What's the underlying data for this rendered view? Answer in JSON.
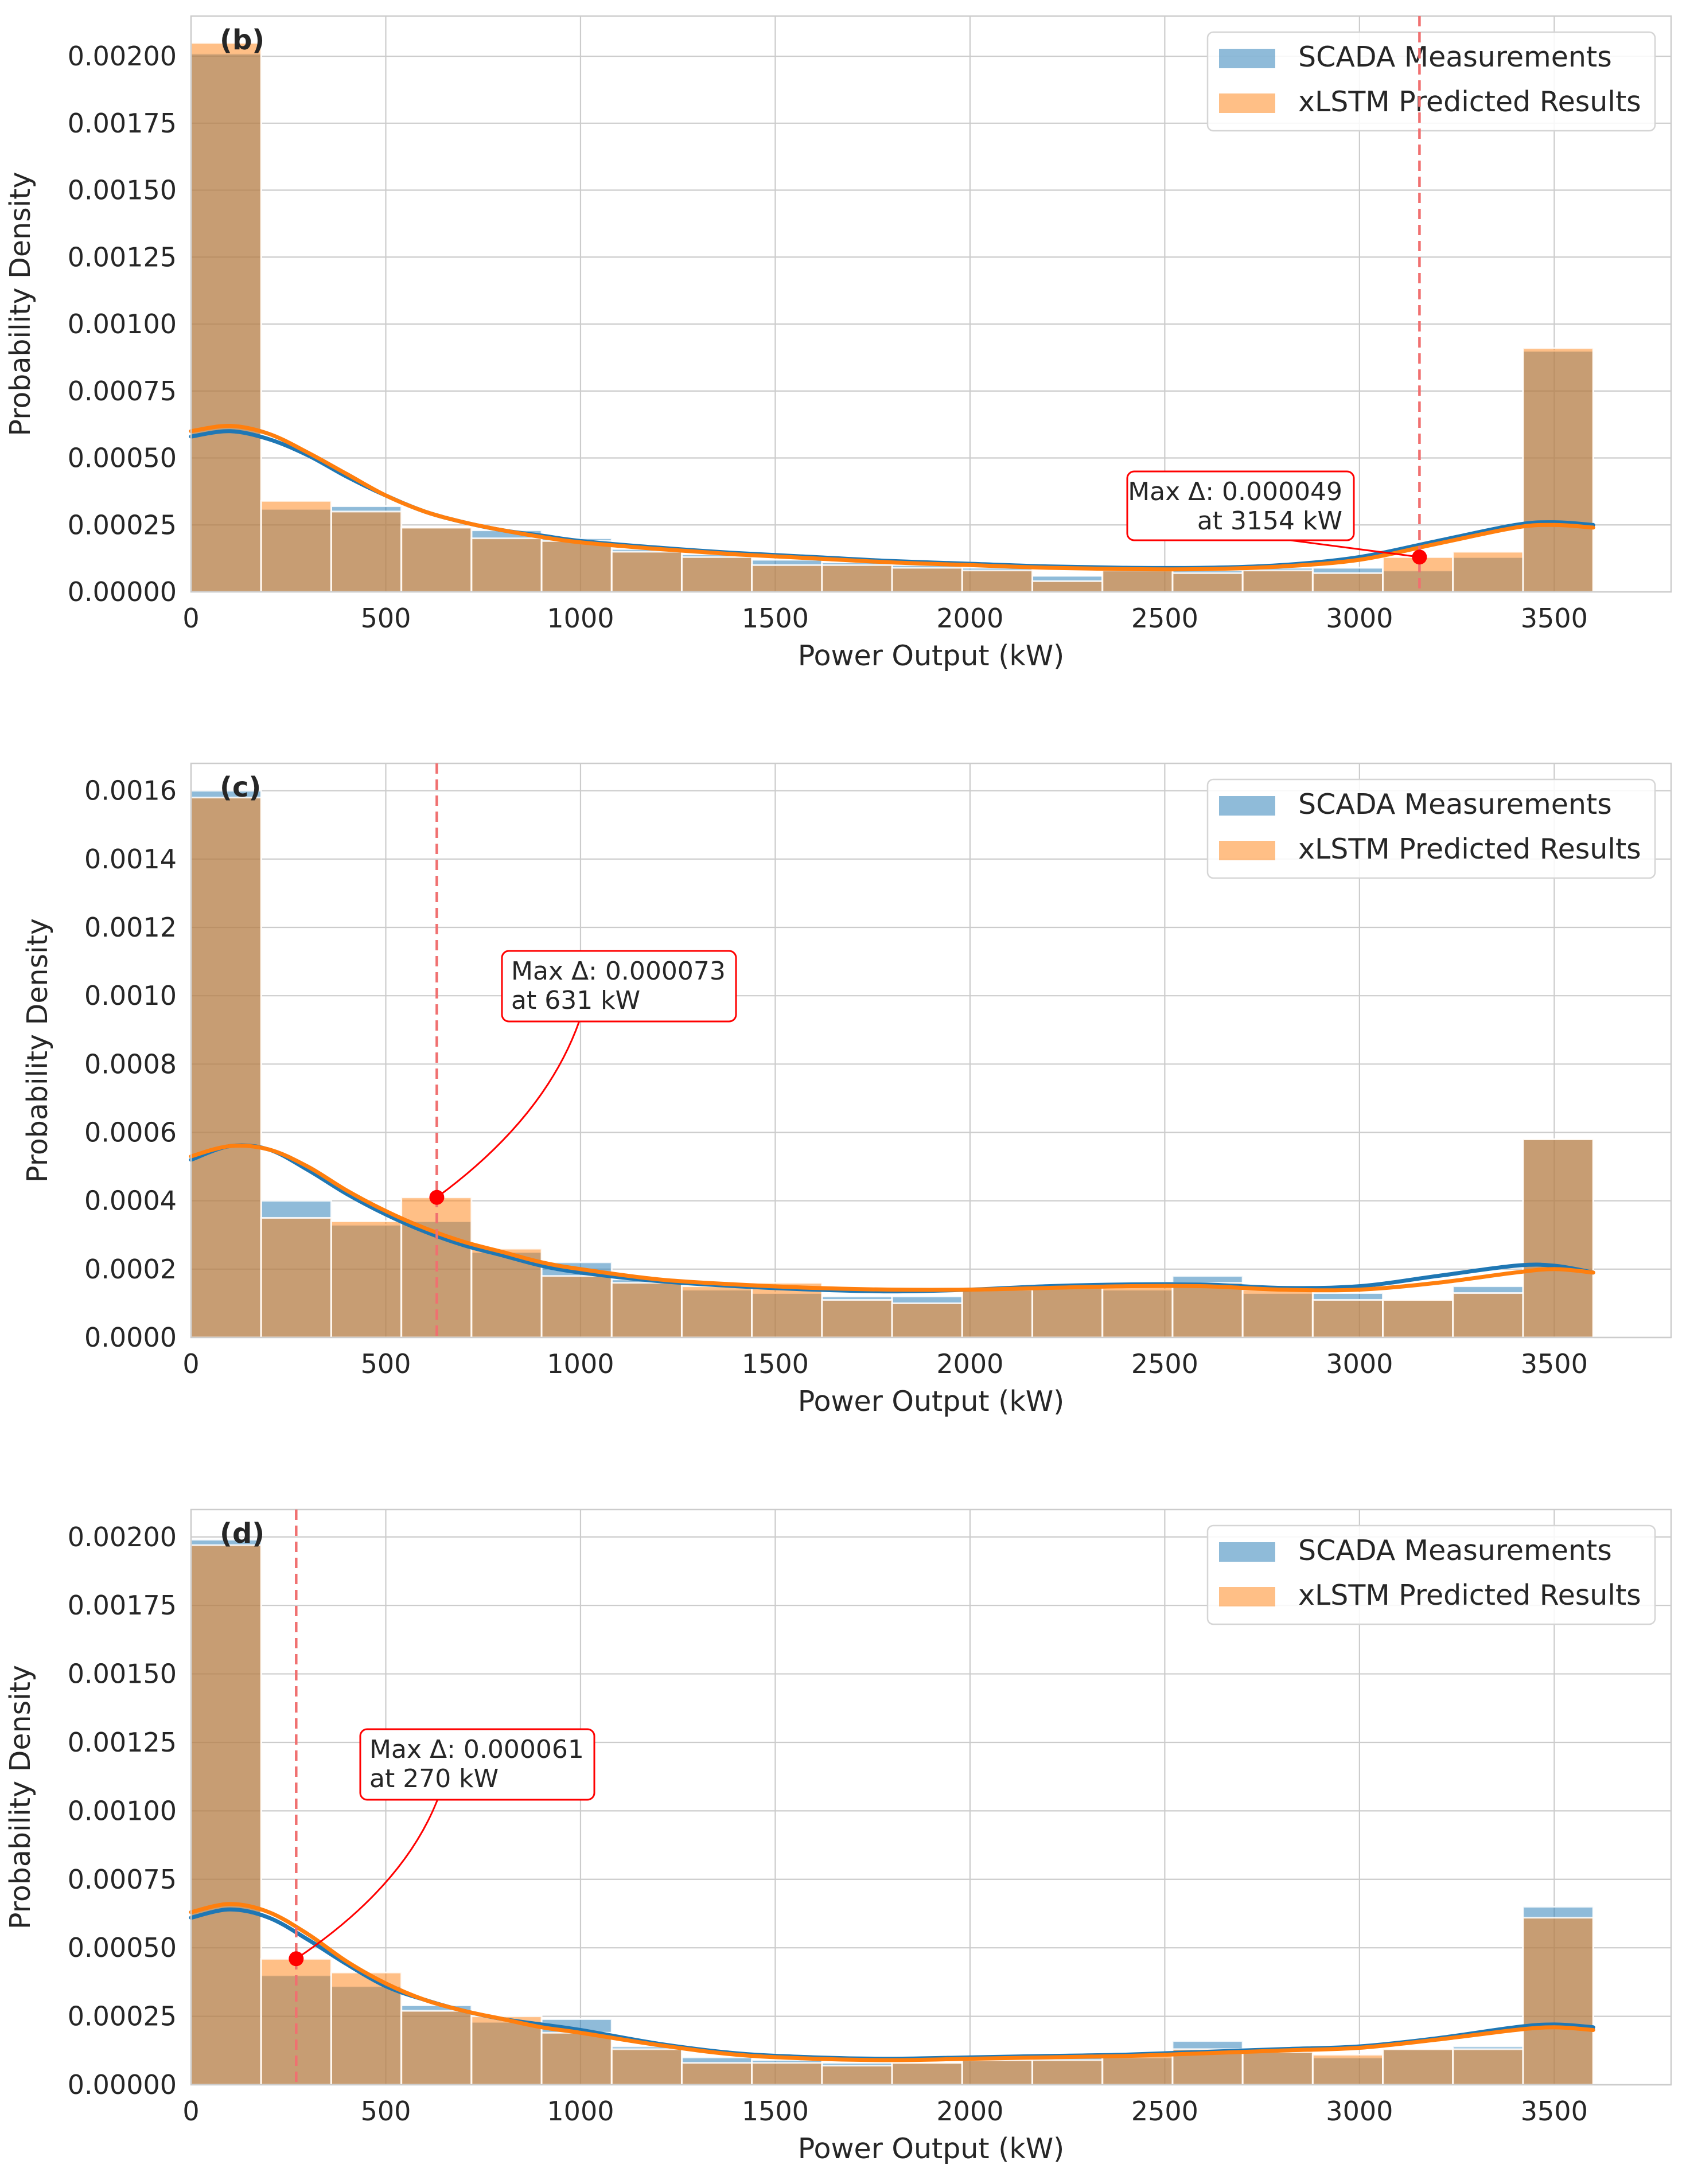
{
  "colors": {
    "scada": "#1f77b4",
    "xlstm": "#ff7f0e",
    "marker": "#ff0000",
    "vline": "#f07070",
    "grid": "#cccccc",
    "frame": "#cccccc",
    "text": "#262626"
  },
  "chart_data": [
    {
      "type": "bar",
      "panel_label": "(b)",
      "xlabel": "Power Output (kW)",
      "ylabel": "Probability Density",
      "xlim": [
        0,
        3800
      ],
      "ylim": [
        0,
        0.00215
      ],
      "xticks": [
        0,
        500,
        1000,
        1500,
        2000,
        2500,
        3000,
        3500
      ],
      "xtick_labels": [
        "0",
        "500",
        "1000",
        "1500",
        "2000",
        "2500",
        "3000",
        "3500"
      ],
      "yticks": [
        0,
        0.00025,
        0.0005,
        0.00075,
        0.001,
        0.00125,
        0.0015,
        0.00175,
        0.002
      ],
      "ytick_labels": [
        "0.00000",
        "0.00025",
        "0.00050",
        "0.00075",
        "0.00100",
        "0.00125",
        "0.00150",
        "0.00175",
        "0.00200"
      ],
      "bin_edges": [
        0,
        180,
        360,
        540,
        720,
        900,
        1080,
        1260,
        1440,
        1620,
        1800,
        1980,
        2160,
        2340,
        2520,
        2700,
        2880,
        3060,
        3240,
        3420,
        3600
      ],
      "series": [
        {
          "name": "SCADA Measurements",
          "values": [
            0.00201,
            0.00031,
            0.00032,
            0.00024,
            0.00023,
            0.0002,
            0.00016,
            0.00014,
            0.00012,
            0.00011,
            0.0001,
            9e-05,
            6e-05,
            9e-05,
            8e-05,
            9e-05,
            9e-05,
            8e-05,
            0.00013,
            0.0009
          ]
        },
        {
          "name": "xLSTM Predicted Results",
          "values": [
            0.00205,
            0.00034,
            0.0003,
            0.00024,
            0.0002,
            0.00019,
            0.00015,
            0.00013,
            0.0001,
            0.0001,
            9e-05,
            8e-05,
            4e-05,
            8e-05,
            7e-05,
            8e-05,
            7e-05,
            0.00013,
            0.00015,
            0.00091
          ]
        }
      ],
      "kde": [
        {
          "name": "SCADA Measurements",
          "x": [
            0,
            100,
            200,
            300,
            400,
            500,
            600,
            700,
            800,
            900,
            1000,
            1200,
            1400,
            1600,
            1800,
            2000,
            2200,
            2400,
            2600,
            2800,
            3000,
            3200,
            3400,
            3500,
            3600
          ],
          "y": [
            0.00058,
            0.0006,
            0.00057,
            0.00051,
            0.00043,
            0.00036,
            0.0003,
            0.00026,
            0.00023,
            0.00021,
            0.00019,
            0.000165,
            0.000145,
            0.00013,
            0.000115,
            0.000105,
            9.5e-05,
            9e-05,
            9e-05,
            0.0001,
            0.00013,
            0.00019,
            0.00025,
            0.00026,
            0.00025
          ]
        },
        {
          "name": "xLSTM Predicted Results",
          "x": [
            0,
            100,
            200,
            300,
            400,
            500,
            600,
            700,
            800,
            900,
            1000,
            1200,
            1400,
            1600,
            1800,
            2000,
            2200,
            2400,
            2600,
            2800,
            3000,
            3200,
            3400,
            3500,
            3600
          ],
          "y": [
            0.0006,
            0.00062,
            0.00059,
            0.00052,
            0.00044,
            0.00036,
            0.0003,
            0.00026,
            0.00023,
            0.000205,
            0.000185,
            0.00016,
            0.00014,
            0.000125,
            0.00011,
            0.0001,
            9e-05,
            8.5e-05,
            8.5e-05,
            9.5e-05,
            0.00012,
            0.00018,
            0.00024,
            0.00025,
            0.00024
          ]
        }
      ],
      "max_delta": {
        "x": 3154,
        "y": 0.00013,
        "line1": "Max Δ: 0.000049",
        "line2": "at 3154 kW",
        "text_align": "right"
      }
    },
    {
      "type": "bar",
      "panel_label": "(c)",
      "xlabel": "Power Output (kW)",
      "ylabel": "Probability Density",
      "xlim": [
        0,
        3800
      ],
      "ylim": [
        0,
        0.00168
      ],
      "xticks": [
        0,
        500,
        1000,
        1500,
        2000,
        2500,
        3000,
        3500
      ],
      "xtick_labels": [
        "0",
        "500",
        "1000",
        "1500",
        "2000",
        "2500",
        "3000",
        "3500"
      ],
      "yticks": [
        0,
        0.0002,
        0.0004,
        0.0006,
        0.0008,
        0.001,
        0.0012,
        0.0014,
        0.0016
      ],
      "ytick_labels": [
        "0.0000",
        "0.0002",
        "0.0004",
        "0.0006",
        "0.0008",
        "0.0010",
        "0.0012",
        "0.0014",
        "0.0016"
      ],
      "bin_edges": [
        0,
        180,
        360,
        540,
        720,
        900,
        1080,
        1260,
        1440,
        1620,
        1800,
        1980,
        2160,
        2340,
        2520,
        2700,
        2880,
        3060,
        3240,
        3420,
        3600
      ],
      "series": [
        {
          "name": "SCADA Measurements",
          "values": [
            0.0016,
            0.0004,
            0.00033,
            0.00034,
            0.00025,
            0.00022,
            0.00017,
            0.00014,
            0.00013,
            0.00012,
            0.00012,
            0.00014,
            0.00015,
            0.00014,
            0.00018,
            0.00013,
            0.00013,
            0.00011,
            0.00015,
            0.00058
          ]
        },
        {
          "name": "xLSTM Predicted Results",
          "values": [
            0.00158,
            0.00035,
            0.00034,
            0.00041,
            0.00026,
            0.00018,
            0.00016,
            0.00015,
            0.00016,
            0.00011,
            0.0001,
            0.00014,
            0.00015,
            0.00016,
            0.00016,
            0.00014,
            0.00011,
            0.00011,
            0.00013,
            0.00058
          ]
        }
      ],
      "kde": [
        {
          "name": "SCADA Measurements",
          "x": [
            0,
            100,
            200,
            300,
            400,
            500,
            600,
            700,
            800,
            900,
            1000,
            1200,
            1400,
            1600,
            1800,
            2000,
            2200,
            2400,
            2600,
            2800,
            3000,
            3200,
            3400,
            3500,
            3600
          ],
          "y": [
            0.00052,
            0.00056,
            0.00055,
            0.00049,
            0.00042,
            0.00036,
            0.00031,
            0.00027,
            0.00024,
            0.00021,
            0.00019,
            0.000165,
            0.00015,
            0.00014,
            0.000135,
            0.00014,
            0.00015,
            0.000155,
            0.000155,
            0.000145,
            0.00015,
            0.00018,
            0.00021,
            0.00021,
            0.00019
          ]
        },
        {
          "name": "xLSTM Predicted Results",
          "x": [
            0,
            100,
            200,
            300,
            400,
            500,
            600,
            700,
            800,
            900,
            1000,
            1200,
            1400,
            1600,
            1800,
            2000,
            2200,
            2400,
            2600,
            2800,
            3000,
            3200,
            3400,
            3500,
            3600
          ],
          "y": [
            0.00053,
            0.00056,
            0.00055,
            0.0005,
            0.00043,
            0.00037,
            0.00032,
            0.00028,
            0.00025,
            0.00022,
            0.0002,
            0.00017,
            0.000155,
            0.000145,
            0.00014,
            0.00014,
            0.000145,
            0.00015,
            0.00015,
            0.00014,
            0.00014,
            0.00016,
            0.00019,
            0.0002,
            0.00019
          ]
        }
      ],
      "max_delta": {
        "x": 631,
        "y": 0.00041,
        "line1": "Max Δ: 0.000073",
        "line2": "at 631 kW",
        "text_align": "left"
      }
    },
    {
      "type": "bar",
      "panel_label": "(d)",
      "xlabel": "Power Output (kW)",
      "ylabel": "Probability Density",
      "xlim": [
        0,
        3800
      ],
      "ylim": [
        0,
        0.0021
      ],
      "xticks": [
        0,
        500,
        1000,
        1500,
        2000,
        2500,
        3000,
        3500
      ],
      "xtick_labels": [
        "0",
        "500",
        "1000",
        "1500",
        "2000",
        "2500",
        "3000",
        "3500"
      ],
      "yticks": [
        0,
        0.00025,
        0.0005,
        0.00075,
        0.001,
        0.00125,
        0.0015,
        0.00175,
        0.002
      ],
      "ytick_labels": [
        "0.00000",
        "0.00025",
        "0.00050",
        "0.00075",
        "0.00100",
        "0.00125",
        "0.00150",
        "0.00175",
        "0.00200"
      ],
      "bin_edges": [
        0,
        180,
        360,
        540,
        720,
        900,
        1080,
        1260,
        1440,
        1620,
        1800,
        1980,
        2160,
        2340,
        2520,
        2700,
        2880,
        3060,
        3240,
        3420,
        3600
      ],
      "series": [
        {
          "name": "SCADA Measurements",
          "values": [
            0.00199,
            0.0004,
            0.00036,
            0.00029,
            0.00023,
            0.00024,
            0.00014,
            0.0001,
            9e-05,
            8e-05,
            8e-05,
            9e-05,
            0.0001,
            0.0001,
            0.00016,
            0.00012,
            0.0001,
            0.00013,
            0.00014,
            0.00065
          ]
        },
        {
          "name": "xLSTM Predicted Results",
          "values": [
            0.00197,
            0.00046,
            0.00041,
            0.00027,
            0.00025,
            0.00019,
            0.00013,
            8e-05,
            8e-05,
            7e-05,
            8e-05,
            9e-05,
            9e-05,
            0.00011,
            0.00013,
            0.00012,
            0.00011,
            0.00013,
            0.00013,
            0.00061
          ]
        }
      ],
      "kde": [
        {
          "name": "SCADA Measurements",
          "x": [
            0,
            100,
            200,
            300,
            400,
            500,
            600,
            700,
            800,
            900,
            1000,
            1200,
            1400,
            1600,
            1800,
            2000,
            2200,
            2400,
            2600,
            2800,
            3000,
            3200,
            3400,
            3500,
            3600
          ],
          "y": [
            0.00061,
            0.00064,
            0.00061,
            0.00053,
            0.00044,
            0.00036,
            0.00031,
            0.00027,
            0.00024,
            0.00022,
            0.0002,
            0.00015,
            0.000115,
            0.0001,
            9.5e-05,
            0.0001,
            0.000105,
            0.00011,
            0.00012,
            0.00013,
            0.00014,
            0.00017,
            0.00021,
            0.00022,
            0.00021
          ]
        },
        {
          "name": "xLSTM Predicted Results",
          "x": [
            0,
            100,
            200,
            300,
            400,
            500,
            600,
            700,
            800,
            900,
            1000,
            1200,
            1400,
            1600,
            1800,
            2000,
            2200,
            2400,
            2600,
            2800,
            3000,
            3200,
            3400,
            3500,
            3600
          ],
          "y": [
            0.00063,
            0.00066,
            0.00063,
            0.00055,
            0.00045,
            0.00037,
            0.00031,
            0.00027,
            0.00024,
            0.00021,
            0.00019,
            0.000145,
            0.00011,
            9.5e-05,
            9e-05,
            9.5e-05,
            0.0001,
            0.000105,
            0.000115,
            0.000125,
            0.000135,
            0.000165,
            0.0002,
            0.00021,
            0.0002
          ]
        }
      ],
      "max_delta": {
        "x": 270,
        "y": 0.00046,
        "line1": "Max Δ: 0.000061",
        "line2": "at 270 kW",
        "text_align": "left"
      }
    }
  ]
}
